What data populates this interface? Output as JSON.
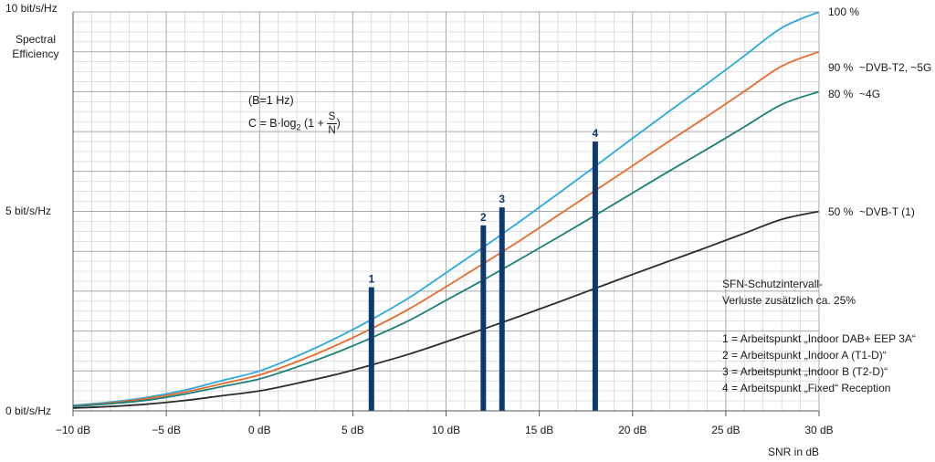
{
  "chart_data": {
    "type": "line",
    "title": "",
    "xlabel": "SNR in dB",
    "ylabel": "Spectral Efficiency",
    "xlim": [
      -10,
      30
    ],
    "ylim": [
      0,
      10
    ],
    "x_ticks": [
      "−10 dB",
      "−5 dB",
      "0 dB",
      "5 dB",
      "10 dB",
      "15 dB",
      "20 dB",
      "25 dB",
      "30 dB"
    ],
    "y_ticks": [
      "0 bit/s/Hz",
      "5 bit/s/Hz",
      "10 bit/s/Hz"
    ],
    "grid": true,
    "x": [
      -10,
      -8,
      -6,
      -4,
      -2,
      0,
      2,
      4,
      6,
      8,
      10,
      12,
      14,
      16,
      18,
      20,
      22,
      24,
      26,
      28,
      30
    ],
    "series": [
      {
        "name": "100 %",
        "color": "#29a9e0",
        "values": [
          0.14,
          0.22,
          0.34,
          0.52,
          0.76,
          1.0,
          1.37,
          1.8,
          2.29,
          2.83,
          3.46,
          4.1,
          4.76,
          5.44,
          6.13,
          6.83,
          7.52,
          8.2,
          8.9,
          9.6,
          10.0
        ]
      },
      {
        "name": "90 %  ~DVB-T2, ~5G",
        "color": "#e86a2c",
        "values": [
          0.12,
          0.2,
          0.31,
          0.47,
          0.68,
          0.9,
          1.23,
          1.62,
          2.06,
          2.55,
          3.11,
          3.69,
          4.28,
          4.9,
          5.52,
          6.14,
          6.77,
          7.38,
          8.01,
          8.64,
          9.0
        ]
      },
      {
        "name": "80 %  ~4G",
        "color": "#1a8078",
        "values": [
          0.11,
          0.18,
          0.27,
          0.42,
          0.61,
          0.8,
          1.1,
          1.44,
          1.83,
          2.26,
          2.77,
          3.28,
          3.81,
          4.35,
          4.9,
          5.46,
          6.02,
          6.56,
          7.12,
          7.68,
          8.0
        ]
      },
      {
        "name": "50 %  ~DVB-T (1)",
        "color": "#2b2b2b",
        "values": [
          0.07,
          0.11,
          0.17,
          0.26,
          0.38,
          0.5,
          0.69,
          0.9,
          1.15,
          1.42,
          1.73,
          2.05,
          2.38,
          2.72,
          3.07,
          3.42,
          3.76,
          4.1,
          4.45,
          4.8,
          5.0
        ]
      }
    ],
    "markers": [
      {
        "label": "1",
        "x": 6,
        "y": 3.1
      },
      {
        "label": "2",
        "x": 12,
        "y": 4.65
      },
      {
        "label": "3",
        "x": 13,
        "y": 5.1
      },
      {
        "label": "4",
        "x": 18,
        "y": 6.75
      }
    ],
    "marker_color": "#0d3a6e",
    "formula": {
      "line1": "(B=1 Hz)",
      "prefix": "C = B·log",
      "sub": "2",
      "mid": " (1 + ",
      "num": "S",
      "den": "N",
      "suffix": ")"
    },
    "annotations": {
      "sfn_line1": "SFN-Schutzintervall-",
      "sfn_line2": "Verluste zusätzlich ca. 25%",
      "legend": [
        "1 = Arbeitspunkt „Indoor DAB+ EEP 3A“",
        "2 = Arbeitspunkt „Indoor A (T1-D)“",
        "3 = Arbeitspunkt „Indoor B (T2-D)“",
        "4 = Arbeitspunkt „Fixed“ Reception"
      ]
    }
  }
}
